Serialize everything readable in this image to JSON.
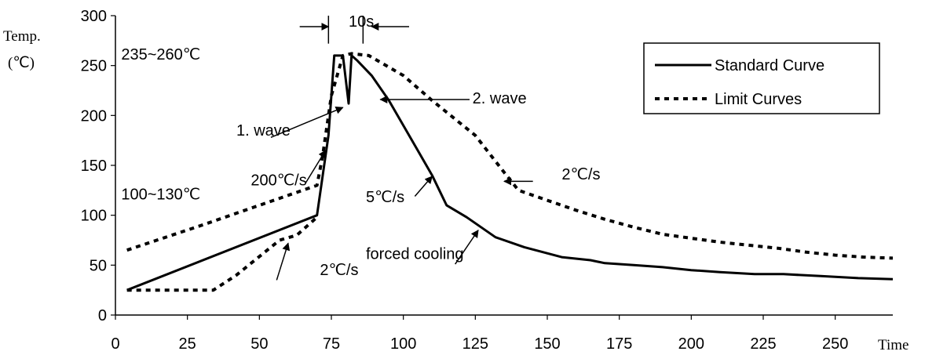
{
  "chart_data": {
    "type": "line",
    "title": "",
    "xlabel": "Time",
    "ylabel_line1": "Temp.",
    "ylabel_line2": "(℃)",
    "xlim": [
      0,
      270
    ],
    "ylim": [
      0,
      300
    ],
    "x_ticks": [
      "0",
      "25",
      "50",
      "75",
      "100",
      "125",
      "150",
      "175",
      "200",
      "225",
      "250"
    ],
    "y_ticks": [
      "0",
      "50",
      "100",
      "150",
      "200",
      "250",
      "300"
    ],
    "grid": false,
    "legend_position": "top-right",
    "series": [
      {
        "name": "Standard Curve",
        "style": "solid",
        "color": "#000000",
        "points": [
          [
            4,
            25
          ],
          [
            70,
            100
          ],
          [
            74,
            180
          ],
          [
            76,
            260
          ],
          [
            79,
            260
          ],
          [
            81,
            212
          ],
          [
            82,
            260
          ],
          [
            84,
            255
          ],
          [
            89,
            240
          ],
          [
            95,
            215
          ],
          [
            105,
            165
          ],
          [
            110,
            140
          ],
          [
            115,
            110
          ],
          [
            122,
            98
          ],
          [
            132,
            78
          ],
          [
            142,
            68
          ],
          [
            155,
            58
          ],
          [
            165,
            55
          ],
          [
            170,
            52
          ],
          [
            180,
            50
          ],
          [
            190,
            48
          ],
          [
            200,
            45
          ],
          [
            210,
            43
          ],
          [
            222,
            41
          ],
          [
            232,
            41
          ],
          [
            245,
            39
          ],
          [
            258,
            37
          ],
          [
            270,
            36
          ]
        ]
      },
      {
        "name": "Limit Curves",
        "style": "dotted",
        "color": "#000000",
        "points": [
          [
            4,
            65
          ],
          [
            30,
            90
          ],
          [
            70,
            130
          ],
          [
            72,
            160
          ],
          [
            75,
            220
          ],
          [
            79,
            260
          ],
          [
            82,
            262
          ],
          [
            88,
            260
          ],
          [
            100,
            240
          ],
          [
            110,
            215
          ],
          [
            125,
            180
          ],
          [
            135,
            143
          ],
          [
            140,
            125
          ],
          [
            150,
            115
          ],
          [
            160,
            105
          ],
          [
            170,
            96
          ],
          [
            180,
            88
          ],
          [
            190,
            81
          ],
          [
            200,
            77
          ],
          [
            210,
            73
          ],
          [
            220,
            70
          ],
          [
            230,
            67
          ],
          [
            240,
            63
          ],
          [
            250,
            60
          ],
          [
            260,
            58
          ],
          [
            270,
            57
          ]
        ]
      },
      {
        "name": "",
        "style": "dotted",
        "color": "#000000",
        "points": [
          [
            4,
            25
          ],
          [
            34,
            25
          ],
          [
            42,
            40
          ],
          [
            57,
            75
          ],
          [
            63,
            80
          ],
          [
            70,
            98
          ]
        ]
      }
    ],
    "annotations": [
      {
        "text": "235~260℃",
        "x": 2,
        "y": 256
      },
      {
        "text": "100~130℃",
        "x": 2,
        "y": 116
      },
      {
        "text": "10s",
        "x": 81,
        "y": 289
      },
      {
        "text": "1. wave",
        "x": 42,
        "y": 180
      },
      {
        "text": "200℃/s",
        "x": 47,
        "y": 130
      },
      {
        "text": "2℃/s",
        "x": 71,
        "y": 40
      },
      {
        "text": "2. wave",
        "x": 124,
        "y": 212
      },
      {
        "text": "5℃/s",
        "x": 87,
        "y": 113
      },
      {
        "text": "forced cooling",
        "x": 87,
        "y": 56
      },
      {
        "text": "2℃/s",
        "x": 155,
        "y": 136
      }
    ]
  }
}
